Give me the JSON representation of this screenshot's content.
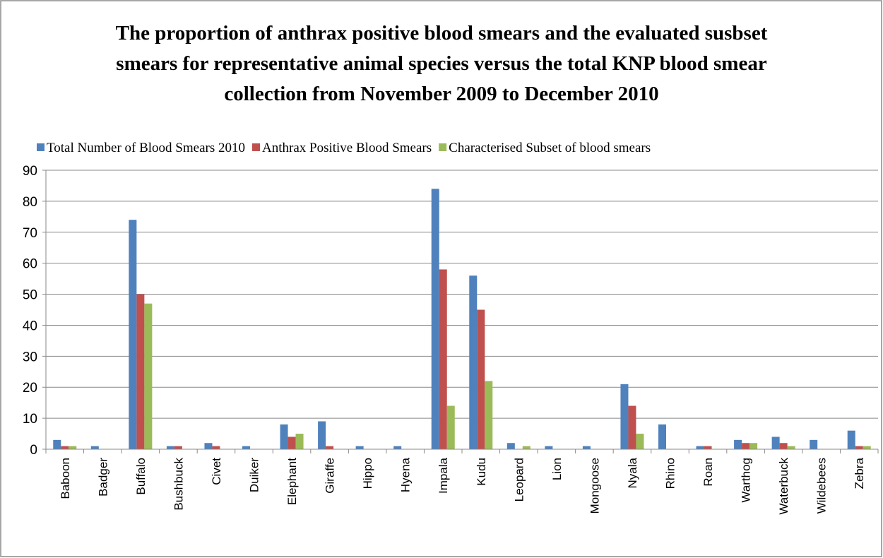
{
  "chart_data": {
    "type": "bar",
    "title": "The proportion of anthrax positive  blood smears and the evaluated susbset smears for representative animal species versus the total KNP blood smear collection  from November 2009 to December 2010",
    "categories": [
      "Baboon",
      "Badger",
      "Buffalo",
      "Bushbuck",
      "Civet",
      "Duiker",
      "Elephant",
      "Giraffe",
      "Hippo",
      "Hyena",
      "Impala",
      "Kudu",
      "Leopard",
      "Lion",
      "Mongoose",
      "Nyala",
      "Rhino",
      "Roan",
      "Warthog",
      "Waterbuck",
      "Wildebees",
      "Zebra"
    ],
    "series": [
      {
        "name": "Total Number of Blood Smears 2010",
        "color": "#4f81bd",
        "values": [
          3,
          1,
          74,
          1,
          2,
          1,
          8,
          9,
          1,
          1,
          84,
          56,
          2,
          1,
          1,
          21,
          8,
          1,
          3,
          4,
          3,
          6
        ]
      },
      {
        "name": "Anthrax Positive Blood Smears",
        "color": "#c0504d",
        "values": [
          1,
          0,
          50,
          1,
          1,
          0,
          4,
          1,
          0,
          0,
          58,
          45,
          0,
          0,
          0,
          14,
          0,
          1,
          2,
          2,
          0,
          1
        ]
      },
      {
        "name": "Characterised Subset of blood smears",
        "color": "#9bbb59",
        "values": [
          1,
          0,
          47,
          0,
          0,
          0,
          5,
          0,
          0,
          0,
          14,
          22,
          1,
          0,
          0,
          5,
          0,
          0,
          2,
          1,
          0,
          1
        ]
      }
    ],
    "ylim": [
      0,
      90
    ],
    "yticks": [
      0,
      10,
      20,
      30,
      40,
      50,
      60,
      70,
      80,
      90
    ],
    "grid": true,
    "legend": "top"
  }
}
